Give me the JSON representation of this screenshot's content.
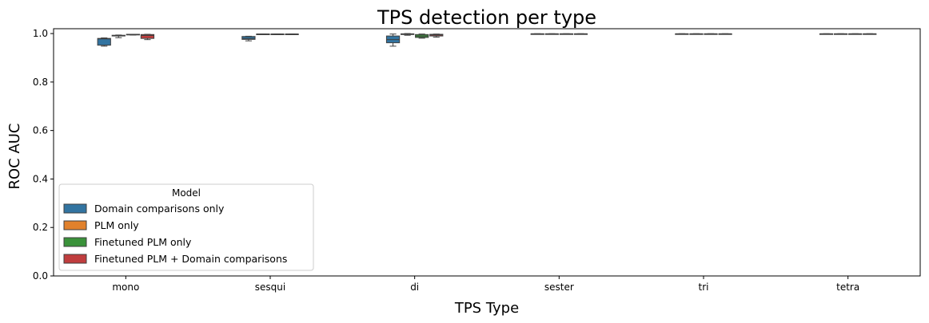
{
  "chart_data": {
    "type": "box",
    "title": "TPS detection per type",
    "xlabel": "TPS Type",
    "ylabel": "ROC AUC",
    "ylim": [
      0,
      1.02
    ],
    "yticks": [
      "0.0",
      "0.2",
      "0.4",
      "0.6",
      "0.8",
      "1.0"
    ],
    "categories": [
      "mono",
      "sesqui",
      "di",
      "sester",
      "tri",
      "tetra"
    ],
    "legend": {
      "title": "Model",
      "placement": "lower-left"
    },
    "series": [
      {
        "name": "Domain comparisons only",
        "color": "#3274a1",
        "boxes": [
          {
            "min": 0.948,
            "q1": 0.952,
            "median": 0.978,
            "q3": 0.98,
            "max": 0.982
          },
          {
            "min": 0.97,
            "q1": 0.976,
            "median": 0.98,
            "q3": 0.988,
            "max": 0.989
          },
          {
            "min": 0.948,
            "q1": 0.962,
            "median": 0.975,
            "q3": 0.99,
            "max": 0.998
          },
          {
            "min": 0.999,
            "q1": 0.999,
            "median": 0.999,
            "q3": 0.999,
            "max": 0.999
          },
          {
            "min": 0.999,
            "q1": 0.999,
            "median": 0.999,
            "q3": 0.999,
            "max": 0.999
          },
          {
            "min": 0.999,
            "q1": 0.999,
            "median": 0.999,
            "q3": 0.999,
            "max": 0.999
          }
        ]
      },
      {
        "name": "PLM only",
        "color": "#e1812c",
        "boxes": [
          {
            "min": 0.983,
            "q1": 0.99,
            "median": 0.992,
            "q3": 0.993,
            "max": 0.994
          },
          {
            "min": 0.997,
            "q1": 0.997,
            "median": 0.998,
            "q3": 0.998,
            "max": 0.998
          },
          {
            "min": 0.993,
            "q1": 0.996,
            "median": 0.998,
            "q3": 0.999,
            "max": 1.0
          },
          {
            "min": 0.999,
            "q1": 0.999,
            "median": 0.999,
            "q3": 0.999,
            "max": 0.999
          },
          {
            "min": 0.999,
            "q1": 0.999,
            "median": 0.999,
            "q3": 0.999,
            "max": 0.999
          },
          {
            "min": 0.999,
            "q1": 0.999,
            "median": 0.999,
            "q3": 0.999,
            "max": 0.999
          }
        ]
      },
      {
        "name": "Finetuned PLM only",
        "color": "#3a923a",
        "boxes": [
          {
            "min": 0.994,
            "q1": 0.995,
            "median": 0.996,
            "q3": 0.997,
            "max": 0.997
          },
          {
            "min": 0.998,
            "q1": 0.998,
            "median": 0.998,
            "q3": 0.998,
            "max": 0.998
          },
          {
            "min": 0.981,
            "q1": 0.984,
            "median": 0.99,
            "q3": 0.996,
            "max": 0.998
          },
          {
            "min": 0.999,
            "q1": 0.999,
            "median": 0.999,
            "q3": 0.999,
            "max": 0.999
          },
          {
            "min": 0.999,
            "q1": 0.999,
            "median": 0.999,
            "q3": 0.999,
            "max": 0.999
          },
          {
            "min": 0.999,
            "q1": 0.999,
            "median": 0.999,
            "q3": 0.999,
            "max": 0.999
          }
        ]
      },
      {
        "name": "Finetuned PLM + Domain comparisons",
        "color": "#c03d3e",
        "boxes": [
          {
            "min": 0.975,
            "q1": 0.98,
            "median": 0.992,
            "q3": 0.996,
            "max": 0.997
          },
          {
            "min": 0.998,
            "q1": 0.998,
            "median": 0.998,
            "q3": 0.998,
            "max": 0.998
          },
          {
            "min": 0.985,
            "q1": 0.99,
            "median": 0.994,
            "q3": 0.997,
            "max": 0.998
          },
          {
            "min": 0.999,
            "q1": 0.999,
            "median": 0.999,
            "q3": 0.999,
            "max": 0.999
          },
          {
            "min": 0.999,
            "q1": 0.999,
            "median": 0.999,
            "q3": 0.999,
            "max": 0.999
          },
          {
            "min": 0.999,
            "q1": 0.999,
            "median": 0.999,
            "q3": 0.999,
            "max": 0.999
          }
        ]
      }
    ]
  }
}
